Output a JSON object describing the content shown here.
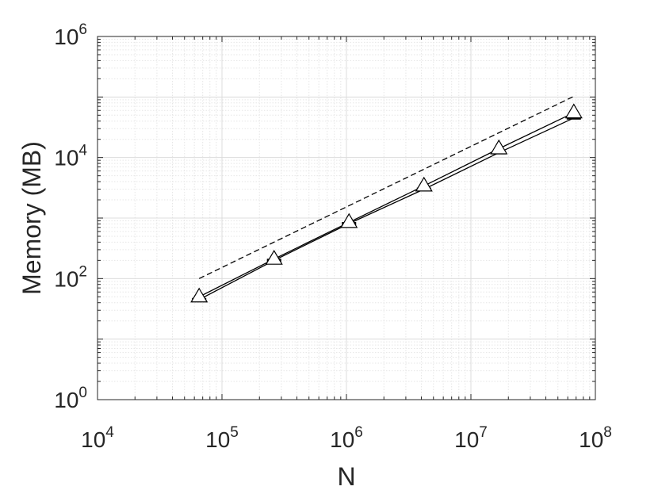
{
  "chart_data": {
    "type": "line",
    "xscale": "log",
    "yscale": "log",
    "xlim": [
      10000,
      100000000
    ],
    "ylim": [
      1,
      1000000
    ],
    "grid": true,
    "minor_grid": true,
    "xlabel": "N",
    "ylabel": "Memory (MB)",
    "xticks": [
      {
        "base": "10",
        "exp": "4",
        "value": 10000
      },
      {
        "base": "10",
        "exp": "5",
        "value": 100000
      },
      {
        "base": "10",
        "exp": "6",
        "value": 1000000
      },
      {
        "base": "10",
        "exp": "7",
        "value": 10000000
      },
      {
        "base": "10",
        "exp": "8",
        "value": 100000000
      }
    ],
    "yticks": [
      {
        "base": "10",
        "exp": "0",
        "value": 1
      },
      {
        "base": "10",
        "exp": "2",
        "value": 100
      },
      {
        "base": "10",
        "exp": "4",
        "value": 10000
      },
      {
        "base": "10",
        "exp": "6",
        "value": 1000000
      }
    ],
    "series": [
      {
        "style": "solid",
        "marker": "bar",
        "color": "#000000",
        "x": [
          65536,
          262144,
          1048576,
          4194304,
          16777216,
          67108864
        ],
        "y": [
          45,
          200,
          810,
          3000,
          12000,
          45000
        ]
      },
      {
        "style": "solid",
        "marker": "triangle",
        "color": "#000000",
        "x": [
          65536,
          262144,
          1048576,
          4194304,
          16777216,
          67108864
        ],
        "y": [
          50,
          210,
          850,
          3400,
          14000,
          55000
        ]
      },
      {
        "style": "dashed",
        "marker": "none",
        "color": "#000000",
        "x": [
          65536,
          67108864
        ],
        "y": [
          100,
          102400
        ]
      }
    ]
  }
}
